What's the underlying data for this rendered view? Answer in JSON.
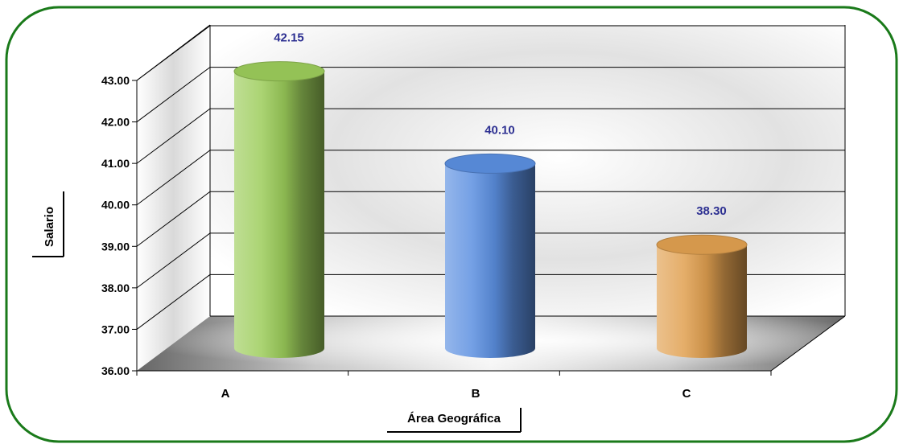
{
  "chart_data": {
    "type": "bar",
    "style": "3d-cylinder",
    "categories": [
      "A",
      "B",
      "C"
    ],
    "values": [
      42.15,
      40.1,
      38.3
    ],
    "data_labels": [
      "42.15",
      "40.10",
      "38.30"
    ],
    "bar_colors": [
      "#9ccc5a",
      "#5b8fe0",
      "#e0a050"
    ],
    "xlabel": "Área Geográfica",
    "ylabel": "Salario",
    "ylim": [
      36,
      43
    ],
    "yticks": [
      "36.00",
      "37.00",
      "38.00",
      "39.00",
      "40.00",
      "41.00",
      "42.00",
      "43.00"
    ],
    "grid": true,
    "legend": "none",
    "frame_color": "#1a7a1a"
  }
}
